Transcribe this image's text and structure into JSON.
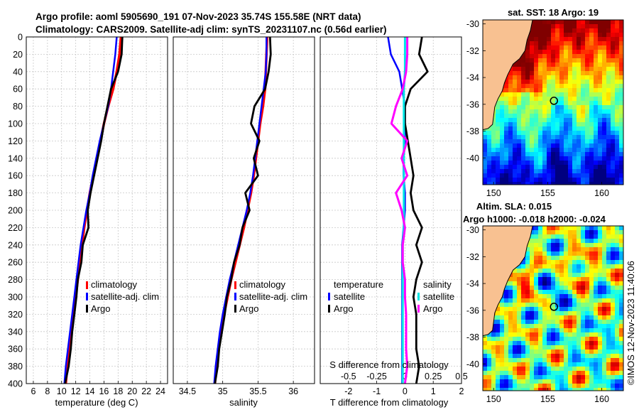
{
  "header": {
    "title_line1": "Argo profile: aoml 5905690_191 07-Nov-2023 35.74S 155.58E (NRT data)",
    "title_line2": "Climatology: CARS2009. Satellite-adj clim: synTS_20231107.nc (0.56d earlier)"
  },
  "colors": {
    "climatology": "#ff0000",
    "satellite": "#0000ff",
    "argo": "#000000",
    "salinity_sat": "#00e5e5",
    "salinity_argo": "#ff00ff",
    "land": "#f8c191"
  },
  "chart_data": [
    {
      "type": "line",
      "panel": "temperature",
      "xlabel": "temperature (deg C)",
      "xlim": [
        5,
        25
      ],
      "xticks": [
        "6",
        "8",
        "10",
        "12",
        "14",
        "16",
        "18",
        "20",
        "22",
        "24"
      ],
      "ylim": [
        0,
        400
      ],
      "yticks": [
        "0",
        "20",
        "40",
        "60",
        "80",
        "100",
        "120",
        "140",
        "160",
        "180",
        "200",
        "220",
        "240",
        "260",
        "280",
        "300",
        "320",
        "340",
        "360",
        "380",
        "400"
      ],
      "depth": [
        0,
        20,
        40,
        60,
        80,
        100,
        120,
        140,
        160,
        180,
        200,
        220,
        240,
        260,
        280,
        300,
        320,
        340,
        360,
        380,
        400
      ],
      "series": [
        {
          "name": "climatology",
          "values": [
            18.4,
            18.2,
            17.8,
            17.3,
            16.6,
            16.0,
            15.5,
            15.0,
            14.5,
            14.0,
            13.6,
            13.2,
            12.9,
            12.6,
            12.3,
            12.0,
            11.7,
            11.4,
            11.1,
            10.8,
            10.6
          ]
        },
        {
          "name": "satellite-adj. clim",
          "values": [
            17.8,
            17.6,
            17.3,
            17.0,
            16.6,
            16.0,
            15.4,
            14.9,
            14.4,
            14.0,
            13.5,
            13.1,
            12.7,
            12.4,
            12.1,
            11.8,
            11.5,
            11.2,
            10.9,
            10.6,
            10.4
          ]
        },
        {
          "name": "Argo",
          "values": [
            18.6,
            18.5,
            18.0,
            17.0,
            16.5,
            16.0,
            15.6,
            15.1,
            14.6,
            14.1,
            13.7,
            13.8,
            13.0,
            12.8,
            12.3,
            12.1,
            11.8,
            11.5,
            11.3,
            11.0,
            10.5
          ]
        }
      ],
      "legend": [
        "climatology",
        "satellite-adj. clim",
        "Argo"
      ]
    },
    {
      "type": "line",
      "panel": "salinity",
      "xlabel": "salinity",
      "xlim": [
        34.3,
        36.3
      ],
      "xticks": [
        "34.5",
        "35",
        "35.5",
        "36"
      ],
      "depth": [
        0,
        20,
        40,
        60,
        80,
        100,
        120,
        140,
        160,
        180,
        200,
        220,
        240,
        260,
        280,
        300,
        320,
        340,
        360,
        380,
        400
      ],
      "series": [
        {
          "name": "climatology",
          "values": [
            35.63,
            35.62,
            35.61,
            35.6,
            35.57,
            35.53,
            35.5,
            35.47,
            35.44,
            35.4,
            35.35,
            35.3,
            35.24,
            35.18,
            35.12,
            35.07,
            35.02,
            34.98,
            34.94,
            34.91,
            34.89
          ]
        },
        {
          "name": "satellite-adj. clim",
          "values": [
            35.62,
            35.62,
            35.61,
            35.58,
            35.55,
            35.52,
            35.49,
            35.46,
            35.43,
            35.39,
            35.34,
            35.28,
            35.22,
            35.16,
            35.1,
            35.05,
            35.0,
            34.96,
            34.93,
            34.9,
            34.88
          ]
        },
        {
          "name": "Argo",
          "values": [
            35.67,
            35.68,
            35.65,
            35.6,
            35.45,
            35.4,
            35.52,
            35.44,
            35.5,
            35.32,
            35.38,
            35.28,
            35.24,
            35.16,
            35.12,
            35.06,
            35.03,
            34.99,
            34.95,
            34.93,
            34.89
          ]
        }
      ],
      "legend": [
        "climatology",
        "satellite-adj. clim",
        "Argo"
      ]
    },
    {
      "type": "line",
      "panel": "differences",
      "xlabel": "T difference from climatology",
      "xlabel_top": "S difference from climatology",
      "xlim": [
        -3,
        2
      ],
      "xticks": [
        "-2",
        "-1",
        "0",
        "1",
        "2"
      ],
      "xticks_top": [
        "-0.5",
        "-0.25",
        "0",
        "0.25",
        "0.5"
      ],
      "depth": [
        0,
        20,
        40,
        60,
        80,
        100,
        120,
        140,
        160,
        180,
        200,
        220,
        240,
        260,
        280,
        300,
        320,
        340,
        360,
        380,
        400
      ],
      "series": [
        {
          "name": "temperature satellite",
          "values": [
            -0.6,
            -0.5,
            -0.2,
            -0.1,
            0.0,
            0.0,
            0.0,
            -0.05,
            -0.05,
            0.0,
            0.0,
            -0.05,
            -0.1,
            -0.1,
            -0.1,
            -0.1,
            -0.1,
            -0.1,
            -0.1,
            -0.1,
            -0.1
          ]
        },
        {
          "name": "temperature Argo",
          "values": [
            0.6,
            0.5,
            0.8,
            0.2,
            0.0,
            0.0,
            0.1,
            0.2,
            0.3,
            0.2,
            0.3,
            0.6,
            0.4,
            0.6,
            0.4,
            0.3,
            0.4,
            0.4,
            0.4,
            0.5,
            0.4
          ]
        },
        {
          "name": "salinity satellite",
          "values": [
            0.0,
            0.0,
            0.0,
            -0.01,
            -0.01,
            -0.01,
            -0.01,
            -0.01,
            -0.01,
            -0.01,
            -0.01,
            -0.01,
            -0.02,
            -0.02,
            -0.02,
            -0.02,
            -0.02,
            -0.02,
            -0.02,
            -0.02,
            -0.02
          ]
        },
        {
          "name": "salinity Argo",
          "values": [
            0.02,
            0.02,
            0.01,
            -0.02,
            -0.08,
            -0.12,
            0.02,
            -0.03,
            0.02,
            -0.08,
            -0.03,
            0.0,
            -0.02,
            -0.02,
            0.0,
            0.0,
            0.01,
            0.01,
            0.01,
            0.02,
            0.0
          ]
        }
      ],
      "legend_temperature": {
        "title": "temperature",
        "items": [
          "satellite",
          "Argo"
        ]
      },
      "legend_salinity": {
        "title": "salinity",
        "items": [
          "satellite",
          "Argo"
        ]
      }
    }
  ],
  "map_sst": {
    "title": "sat. SST: 18 Argo: 19",
    "yticks": [
      "-30",
      "-32",
      "-34",
      "-36",
      "-38",
      "-40"
    ],
    "xticks": [
      "150",
      "155",
      "160"
    ],
    "lon": [
      149,
      162
    ],
    "lat": [
      -29.7,
      -42
    ],
    "argo_position": [
      155.58,
      -35.74
    ]
  },
  "map_sla": {
    "title_line1": "Altim. SLA: 0.015",
    "title_line2": "Argo h1000: -0.018 h2000: -0.024",
    "yticks": [
      "-30",
      "-32",
      "-34",
      "-36",
      "-38",
      "-40"
    ],
    "xticks": [
      "150",
      "155",
      "160"
    ],
    "lon": [
      149,
      162
    ],
    "lat": [
      -29.7,
      -42
    ],
    "argo_position": [
      155.58,
      -35.74
    ]
  },
  "footer": {
    "credit": "©IMOS 12-Nov-2023 11:40:06"
  }
}
